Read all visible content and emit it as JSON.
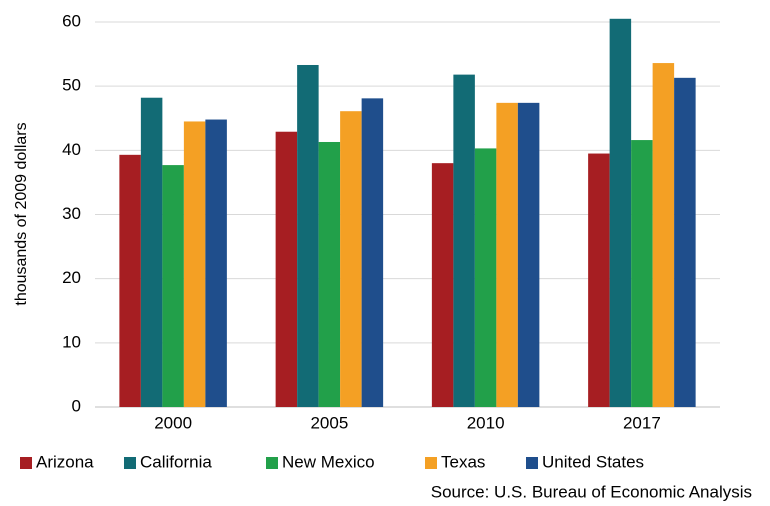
{
  "chart_data": {
    "type": "bar",
    "y_label": "thousands of 2009 dollars",
    "source": "Source: U.S. Bureau of Economic Analysis",
    "categories": [
      "2000",
      "2005",
      "2010",
      "2017"
    ],
    "series": [
      {
        "name": "Arizona",
        "color": "#a61e22",
        "values": [
          39.3,
          42.9,
          38.0,
          39.5
        ]
      },
      {
        "name": "California",
        "color": "#126b75",
        "values": [
          48.2,
          53.3,
          51.8,
          60.5
        ]
      },
      {
        "name": "New Mexico",
        "color": "#22a04a",
        "values": [
          37.7,
          41.3,
          40.3,
          41.6
        ]
      },
      {
        "name": "Texas",
        "color": "#f4a024",
        "values": [
          44.5,
          46.1,
          47.4,
          53.6
        ]
      },
      {
        "name": "United States",
        "color": "#1f4e8c",
        "values": [
          44.8,
          48.1,
          47.4,
          51.3
        ]
      }
    ],
    "ylim": [
      0,
      60
    ],
    "yticks": [
      0,
      10,
      20,
      30,
      40,
      50,
      60
    ],
    "grid": true,
    "legend": "bottom"
  }
}
